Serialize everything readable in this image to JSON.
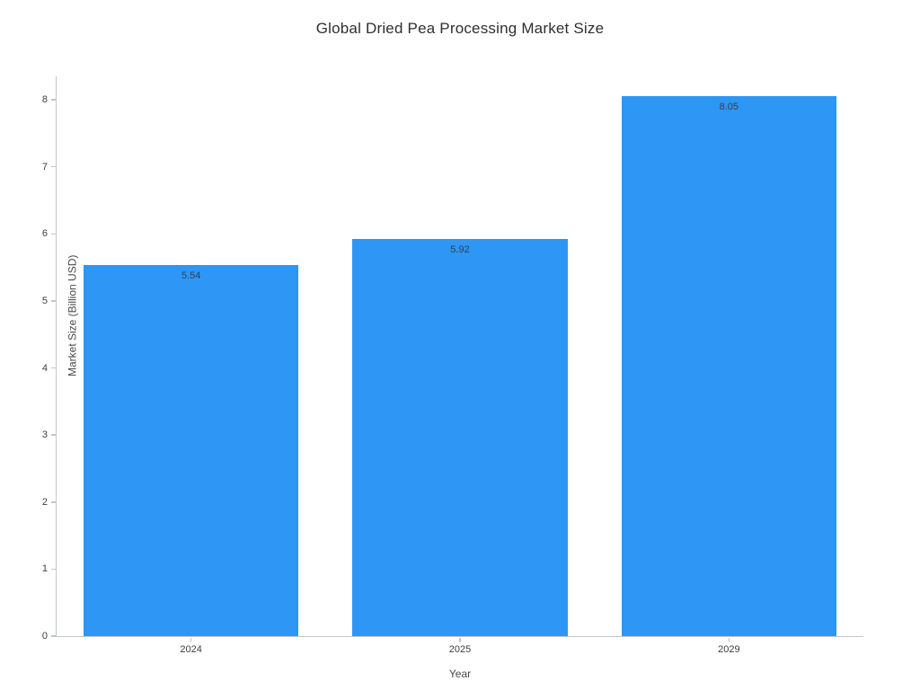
{
  "chart_data": {
    "type": "bar",
    "title": "Global Dried Pea Processing Market Size",
    "xlabel": "Year",
    "ylabel": "Market Size (Billion USD)",
    "categories": [
      "2024",
      "2025",
      "2029"
    ],
    "values": [
      5.54,
      5.92,
      8.05
    ],
    "bar_labels": [
      "5.54",
      "5.92",
      "8.05"
    ],
    "ylim": [
      0,
      8.35
    ],
    "yticks": [
      0,
      1,
      2,
      3,
      4,
      5,
      6,
      7,
      8
    ],
    "bar_color": "#2e96f5",
    "bar_width_fraction": 0.8,
    "grid": false,
    "legend_position": "none",
    "background": "#ffffff"
  }
}
